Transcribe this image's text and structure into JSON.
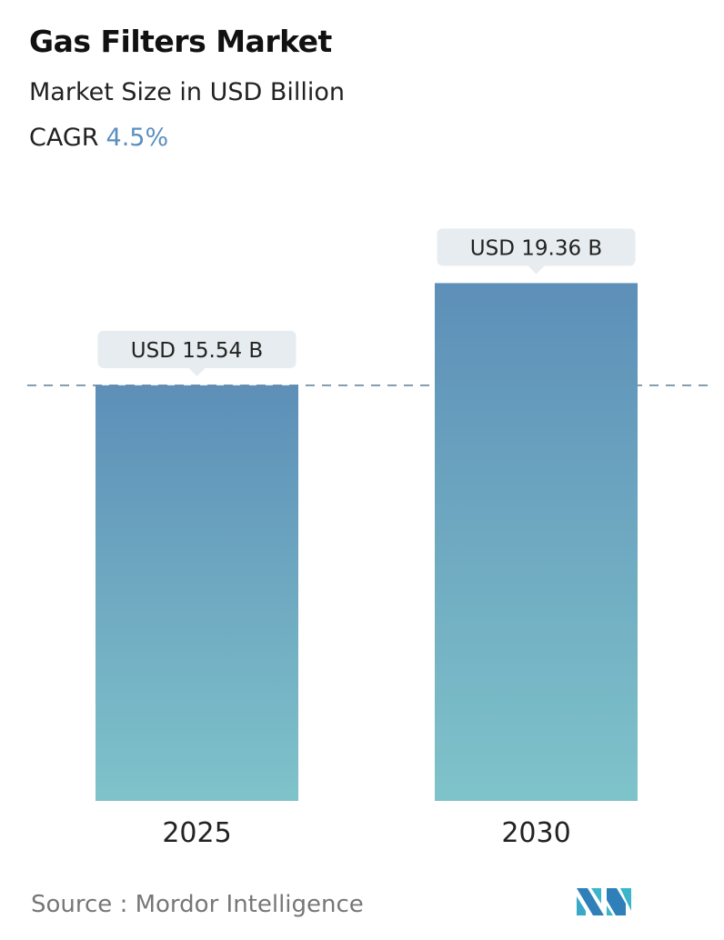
{
  "title": "Gas Filters Market",
  "subtitle": "Market Size in USD Billion",
  "cagr_label": "CAGR",
  "cagr_value": "4.5%",
  "source": "Source :  Mordor Intelligence",
  "logo_text": "Mordor Intelligence",
  "colors": {
    "bar_top": "#5d8fb8",
    "bar_bottom": "#7fc3ca",
    "accent": "#5b8fc0",
    "label_bg": "#e6ecef",
    "dashed_line": "#5a7d95"
  },
  "chart_data": {
    "type": "bar",
    "categories": [
      "2025",
      "2030"
    ],
    "values": [
      15.54,
      19.36
    ],
    "data_labels": [
      "USD 15.54 B",
      "USD 19.36 B"
    ],
    "ylabel": "Market Size in USD Billion",
    "reference_line": 15.54,
    "grid": false
  }
}
